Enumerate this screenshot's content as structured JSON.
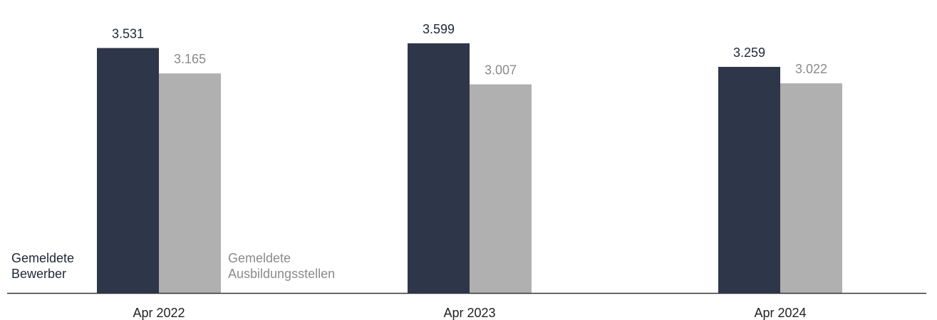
{
  "chart_data": {
    "type": "bar",
    "categories": [
      "Apr 2022",
      "Apr 2023",
      "Apr 2024"
    ],
    "series": [
      {
        "name": "Gemeldete Bewerber",
        "values": [
          3531,
          3599,
          3259
        ],
        "labels": [
          "3.531",
          "3.599",
          "3.259"
        ],
        "color": "#2e3649",
        "label_color": "#1f2638"
      },
      {
        "name": "Gemeldete Ausbildungsstellen",
        "values": [
          3165,
          3007,
          3022
        ],
        "labels": [
          "3.165",
          "3.007",
          "3.022"
        ],
        "color": "#b0b0b0",
        "label_color": "#8a8a8a"
      }
    ],
    "legend": {
      "bewerber_line1": "Gemeldete",
      "bewerber_line2": "Bewerber",
      "stellen_line1": "Gemeldete",
      "stellen_line2": "Ausbildungsstellen"
    },
    "ylim": [
      0,
      4100
    ],
    "grid": false
  }
}
